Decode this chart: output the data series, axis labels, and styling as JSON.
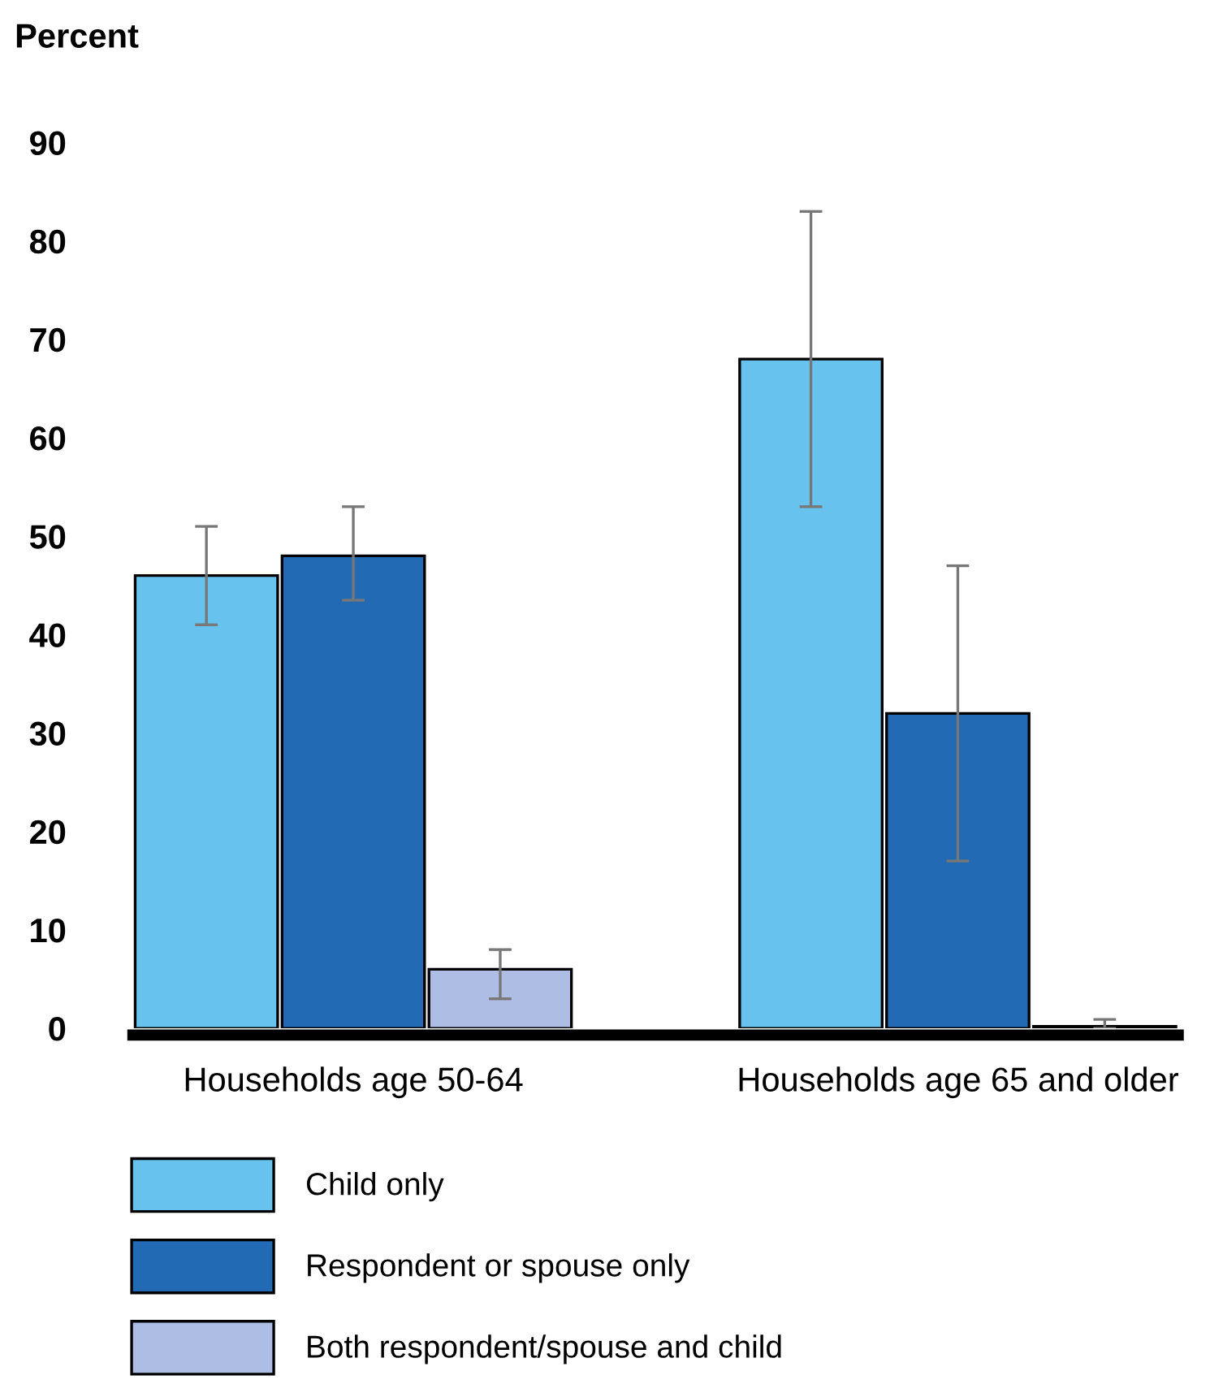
{
  "chart_data": {
    "type": "bar",
    "ylabel": "Percent",
    "categories": [
      "Households age 50-64",
      "Households age 65 and older"
    ],
    "series": [
      {
        "name": "Child only",
        "color": "#67c3ee",
        "values": [
          46,
          68
        ],
        "errors": [
          [
            41,
            51
          ],
          [
            53,
            83
          ]
        ]
      },
      {
        "name": "Respondent or spouse only",
        "color": "#236ab4",
        "values": [
          48,
          32
        ],
        "errors": [
          [
            43.5,
            53
          ],
          [
            17,
            47
          ]
        ]
      },
      {
        "name": "Both respondent/spouse and child",
        "color": "#aebde3",
        "values": [
          6,
          0.2
        ],
        "errors": [
          [
            3,
            8
          ],
          [
            0,
            0.9
          ]
        ]
      }
    ],
    "ylim": [
      0,
      90
    ],
    "yticks": [
      0,
      10,
      20,
      30,
      40,
      50,
      60,
      70,
      80,
      90
    ],
    "grid": false,
    "legend": "bottom"
  }
}
